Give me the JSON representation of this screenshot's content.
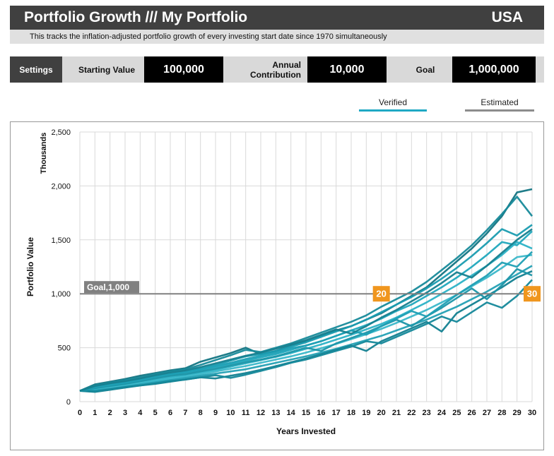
{
  "header": {
    "title": "Portfolio Growth /// My Portfolio",
    "country": "USA"
  },
  "subheader": "This tracks the inflation-adjusted portfolio growth of every investing start date since 1970 simultaneously",
  "settings": {
    "button_label": "Settings",
    "starting_value_label": "Starting Value",
    "starting_value": "100,000",
    "annual_contribution_label": "Annual Contribution",
    "annual_contribution": "10,000",
    "goal_label": "Goal",
    "goal": "1,000,000"
  },
  "legend": {
    "verified": "Verified",
    "verified_color": "#1fa9c4",
    "estimated": "Estimated",
    "estimated_color": "#8c8c8c"
  },
  "chart_data": {
    "type": "line",
    "xlabel": "Years Invested",
    "ylabel": "Portfolio Value",
    "yunit": "Thousands",
    "x": [
      0,
      1,
      2,
      3,
      4,
      5,
      6,
      7,
      8,
      9,
      10,
      11,
      12,
      13,
      14,
      15,
      16,
      17,
      18,
      19,
      20,
      21,
      22,
      23,
      24,
      25,
      26,
      27,
      28,
      29,
      30
    ],
    "xlim": [
      0,
      30
    ],
    "ylim": [
      0,
      2500
    ],
    "yticks": [
      0,
      500,
      1000,
      1500,
      2000,
      2500
    ],
    "ytick_labels": [
      "0",
      "500",
      "1,000",
      "1,500",
      "2,000",
      "2,500"
    ],
    "grid": true,
    "goal": {
      "value": 1000,
      "label": "Goal,1,000"
    },
    "markers": [
      {
        "x": 20,
        "label": "20",
        "color": "#f0961e"
      },
      {
        "x": 30,
        "label": "30",
        "color": "#f0961e"
      }
    ],
    "series": [
      {
        "values": [
          100,
          160,
          185,
          210,
          240,
          265,
          290,
          310,
          370,
          410,
          450,
          500,
          440,
          470,
          520,
          560,
          610,
          660,
          700,
          760,
          820,
          900,
          980,
          1060,
          1180,
          1300,
          1420,
          1560,
          1720,
          1940,
          1970
        ]
      },
      {
        "values": [
          100,
          150,
          175,
          200,
          225,
          255,
          280,
          300,
          340,
          385,
          430,
          480,
          460,
          500,
          540,
          590,
          640,
          690,
          740,
          800,
          880,
          950,
          1020,
          1110,
          1220,
          1330,
          1450,
          1590,
          1740,
          1900,
          1720
        ]
      },
      {
        "values": [
          100,
          140,
          160,
          185,
          210,
          235,
          260,
          280,
          310,
          340,
          380,
          420,
          440,
          470,
          510,
          550,
          600,
          650,
          700,
          760,
          830,
          900,
          970,
          1050,
          1140,
          1240,
          1350,
          1470,
          1600,
          1540,
          1640
        ]
      },
      {
        "values": [
          100,
          130,
          150,
          170,
          195,
          220,
          245,
          265,
          290,
          320,
          350,
          380,
          410,
          440,
          480,
          520,
          560,
          610,
          660,
          710,
          770,
          840,
          900,
          980,
          1060,
          1150,
          1250,
          1360,
          1480,
          1450,
          1580
        ]
      },
      {
        "values": [
          100,
          120,
          140,
          160,
          180,
          200,
          225,
          245,
          270,
          295,
          325,
          355,
          385,
          415,
          450,
          490,
          530,
          575,
          620,
          670,
          720,
          780,
          850,
          920,
          1000,
          1080,
          1170,
          1260,
          1360,
          1480,
          1420
        ]
      },
      {
        "values": [
          100,
          110,
          130,
          150,
          170,
          190,
          210,
          230,
          255,
          280,
          305,
          330,
          360,
          390,
          420,
          455,
          495,
          535,
          580,
          625,
          675,
          730,
          790,
          850,
          920,
          990,
          1070,
          1150,
          1240,
          1340,
          1360
        ]
      },
      {
        "values": [
          100,
          105,
          120,
          140,
          160,
          180,
          200,
          220,
          240,
          260,
          280,
          300,
          330,
          360,
          390,
          420,
          455,
          490,
          530,
          570,
          610,
          660,
          710,
          760,
          820,
          880,
          950,
          1020,
          1100,
          1180,
          1260
        ]
      },
      {
        "values": [
          100,
          90,
          110,
          130,
          150,
          165,
          185,
          205,
          225,
          215,
          240,
          265,
          295,
          330,
          365,
          400,
          440,
          480,
          520,
          470,
          560,
          620,
          680,
          740,
          650,
          820,
          900,
          980,
          1060,
          1150,
          1210
        ]
      },
      {
        "values": [
          100,
          95,
          115,
          135,
          150,
          170,
          190,
          205,
          225,
          245,
          220,
          250,
          285,
          320,
          360,
          390,
          430,
          470,
          510,
          560,
          540,
          600,
          660,
          720,
          790,
          740,
          830,
          920,
          870,
          980,
          1130
        ]
      },
      {
        "values": [
          100,
          125,
          145,
          165,
          190,
          215,
          240,
          255,
          280,
          305,
          335,
          365,
          390,
          420,
          460,
          500,
          470,
          540,
          590,
          640,
          700,
          760,
          700,
          790,
          870,
          960,
          1050,
          950,
          1080,
          1230,
          1170
        ]
      },
      {
        "values": [
          100,
          135,
          155,
          175,
          200,
          230,
          255,
          275,
          300,
          330,
          360,
          395,
          425,
          455,
          495,
          520,
          560,
          610,
          660,
          620,
          700,
          770,
          840,
          790,
          890,
          990,
          1080,
          1170,
          1290,
          1250,
          1390
        ]
      },
      {
        "values": [
          100,
          145,
          170,
          190,
          215,
          245,
          270,
          290,
          320,
          355,
          390,
          425,
          455,
          490,
          530,
          570,
          620,
          670,
          630,
          700,
          780,
          850,
          930,
          1010,
          1100,
          1200,
          1150,
          1260,
          1380,
          1500,
          1600
        ]
      }
    ]
  }
}
